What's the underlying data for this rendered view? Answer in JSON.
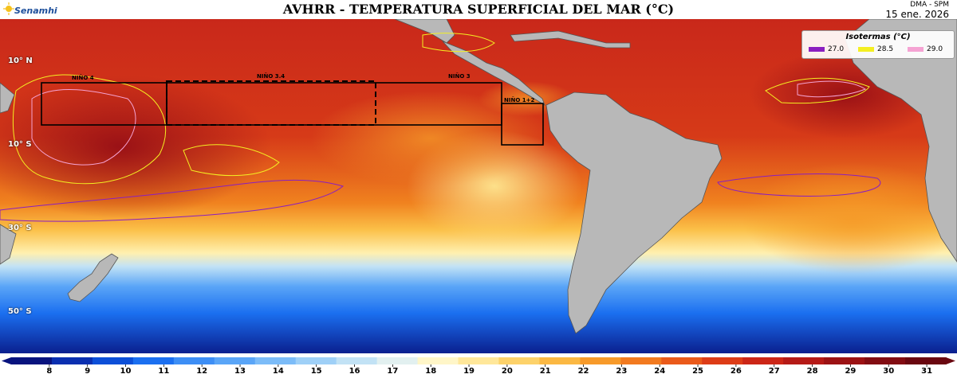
{
  "header": {
    "title": "AVHRR - TEMPERATURA SUPERFICIAL DEL MAR (°C)",
    "logo_text": "Senamhi",
    "source": "DMA - SPM",
    "date": "15 ene. 2026"
  },
  "latitude_labels": [
    "10° N",
    "10° S",
    "30° S",
    "50° S"
  ],
  "legend": {
    "title": "Isotermas (°C)",
    "items": [
      {
        "label": "27.0",
        "color": "#8a1ec0"
      },
      {
        "label": "28.5",
        "color": "#f4ef22"
      },
      {
        "label": "29.0",
        "color": "#f5a3d3"
      }
    ]
  },
  "regions": [
    "NIÑO 4",
    "NIÑO 3.4",
    "NIÑO 3",
    "NIÑO 1+2"
  ],
  "colorbar": {
    "ticks": [
      "8",
      "9",
      "10",
      "11",
      "12",
      "13",
      "14",
      "15",
      "16",
      "17",
      "18",
      "19",
      "20",
      "21",
      "22",
      "23",
      "24",
      "25",
      "26",
      "27",
      "28",
      "29",
      "30",
      "31"
    ],
    "colors": [
      "#08137e",
      "#0a2fb0",
      "#0c4fd8",
      "#1b6ff0",
      "#3d8ef5",
      "#5aa5f7",
      "#7cbcf8",
      "#9fd0f7",
      "#c2e2f5",
      "#e2f0f0",
      "#fff6c8",
      "#ffe79a",
      "#fdd26a",
      "#fbb843",
      "#f79a2a",
      "#f27a1f",
      "#ea5a1a",
      "#dd3c17",
      "#cc2617",
      "#b51a17",
      "#9c1214",
      "#820c12",
      "#6a0710"
    ]
  },
  "colors": {
    "land": "#b8b8b8",
    "warm": "#d2311a",
    "hot": "#a8151a"
  }
}
